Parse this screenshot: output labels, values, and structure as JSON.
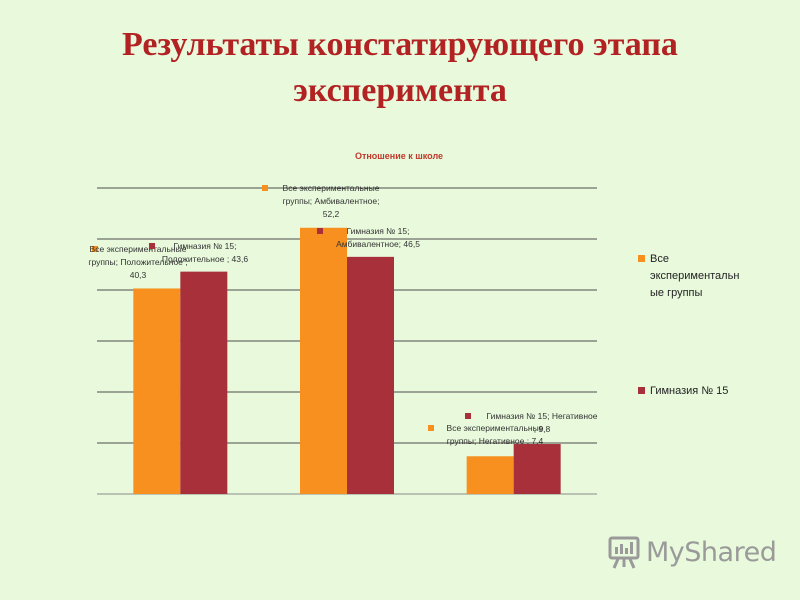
{
  "slide": {
    "title_line1": "Результаты констатирующего этапа",
    "title_line2": "эксперимента"
  },
  "colors": {
    "series_1": "#f7901e",
    "series_2": "#a8303a",
    "title": "#b22222",
    "chart_title": "#c0392b",
    "background": "#e8f9dc"
  },
  "chart_data": {
    "type": "bar",
    "title": "Отношение к школе",
    "categories": [
      "Положительное",
      "Амбивалентное",
      "Негативное"
    ],
    "ylim": [
      0,
      60
    ],
    "grid": true,
    "legend_position": "right",
    "series": [
      {
        "name": "Все экспериментальные группы",
        "values": [
          40.3,
          52.2,
          7.4
        ]
      },
      {
        "name": "Гимназия № 15",
        "values": [
          43.6,
          46.5,
          9.8
        ]
      }
    ],
    "legend": [
      {
        "lines": [
          "Все",
          "экспериментальн",
          "ые группы"
        ]
      },
      {
        "lines": [
          "Гимназия № 15"
        ]
      }
    ],
    "data_labels": [
      {
        "series": 0,
        "category": 0,
        "lines": [
          "Все экспериментальные",
          "группы; Положительное ;",
          "40,3"
        ]
      },
      {
        "series": 1,
        "category": 0,
        "lines": [
          "Гимназия № 15;",
          "Положительное ; 43,6"
        ]
      },
      {
        "series": 0,
        "category": 1,
        "lines": [
          "Все экспериментальные",
          "группы; Амбивалентное;",
          "52,2"
        ]
      },
      {
        "series": 1,
        "category": 1,
        "lines": [
          "Гимназия № 15;",
          "Амбивалентное; 46,5"
        ]
      },
      {
        "series": 0,
        "category": 2,
        "lines": [
          "Все экспериментальные",
          "группы; Негативное ; 7,4"
        ]
      },
      {
        "series": 1,
        "category": 2,
        "lines": [
          "Гимназия № 15; Негативное",
          "; 9,8"
        ]
      }
    ]
  },
  "watermark": {
    "text": "MyShared",
    "icon": "presentation-board-icon"
  }
}
